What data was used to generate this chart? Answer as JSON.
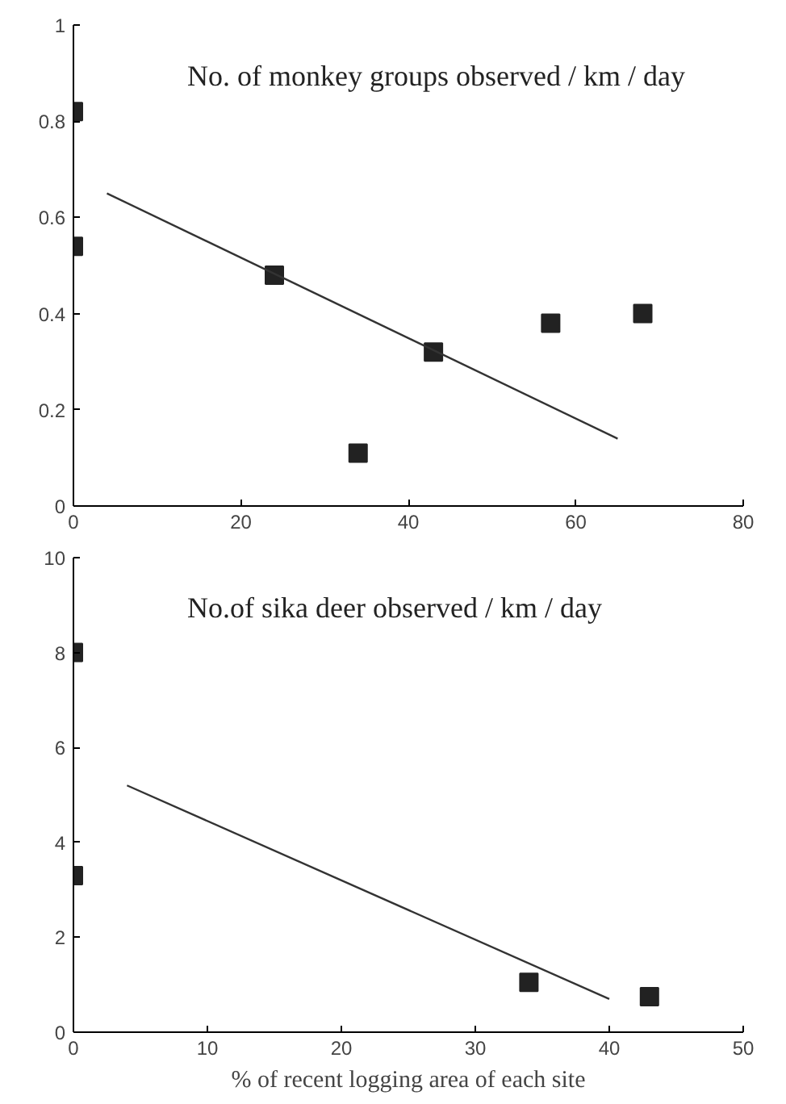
{
  "chart_data": [
    {
      "type": "scatter",
      "title": "No. of monkey groups observed / km / day",
      "xlim": [
        0,
        80
      ],
      "xticks": [
        0,
        20,
        40,
        60,
        80
      ],
      "ylim": [
        0,
        1
      ],
      "yticks": [
        0,
        0.2,
        0.4,
        0.6,
        0.8,
        1
      ],
      "series": [
        {
          "color": "#222222",
          "marker": "square",
          "x": [
            0,
            0,
            24,
            34,
            43,
            57,
            68
          ],
          "values": [
            0.82,
            0.54,
            0.48,
            0.11,
            0.32,
            0.38,
            0.4
          ]
        },
        {
          "type": "line",
          "marker": "none",
          "color": "#333333",
          "x": [
            4,
            65
          ],
          "values": [
            0.65,
            0.14
          ]
        }
      ]
    },
    {
      "type": "scatter",
      "title": "No.of  sika deer observed / km / day",
      "xlabel": "% of recent logging area of each site",
      "xlim": [
        0,
        50
      ],
      "xticks": [
        0,
        10,
        20,
        30,
        40,
        50
      ],
      "ylim": [
        0,
        10
      ],
      "yticks": [
        0,
        2,
        4,
        6,
        8,
        10
      ],
      "series": [
        {
          "color": "#222222",
          "marker": "square",
          "x": [
            0,
            0,
            34,
            43
          ],
          "values": [
            8,
            3.3,
            1.05,
            0.75
          ]
        },
        {
          "type": "line",
          "marker": "none",
          "color": "#333333",
          "x": [
            4,
            40
          ],
          "values": [
            5.2,
            0.7
          ]
        }
      ]
    }
  ]
}
